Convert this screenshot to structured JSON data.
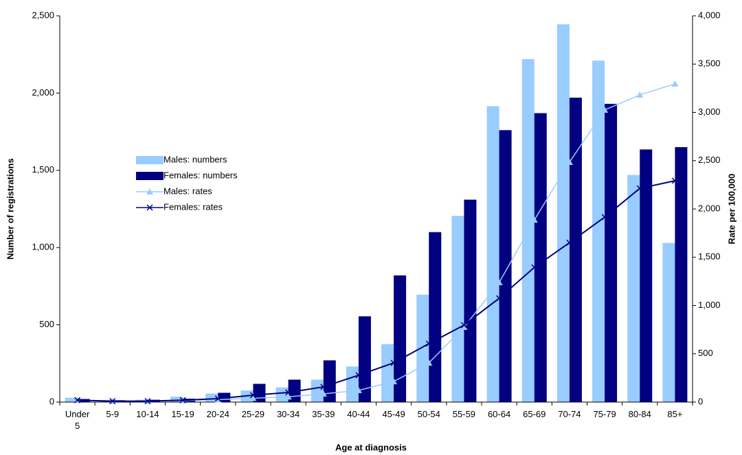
{
  "chart_data": {
    "type": "bar_line",
    "x_label": "Age at diagnosis",
    "y_label": "Number of registrations",
    "y2_label": "Rate per 100,000",
    "categories": [
      "Under 5",
      "5-9",
      "10-14",
      "15-19",
      "20-24",
      "25-29",
      "30-34",
      "35-39",
      "40-44",
      "45-49",
      "50-54",
      "55-59",
      "60-64",
      "65-69",
      "70-74",
      "75-79",
      "80-84",
      "85+"
    ],
    "ylim": [
      0,
      2500
    ],
    "yticks": [
      0,
      500,
      {
        "value": 1000,
        "label": "1,000"
      },
      {
        "value": 1500,
        "label": "1,500"
      },
      {
        "value": 2000,
        "label": "2,000"
      },
      {
        "value": 2500,
        "label": "2,500"
      }
    ],
    "y2lim": [
      0,
      4000
    ],
    "y2ticks": [
      0,
      500,
      {
        "value": 1000,
        "label": "1,000"
      },
      {
        "value": 1500,
        "label": "1,500"
      },
      {
        "value": 2000,
        "label": "2,000"
      },
      {
        "value": 2500,
        "label": "2,500"
      },
      {
        "value": 3000,
        "label": "3,000"
      },
      {
        "value": 3500,
        "label": "3,500"
      },
      {
        "value": 4000,
        "label": "4,000"
      }
    ],
    "grid": false,
    "series": [
      {
        "name": "Males: numbers",
        "type": "bar",
        "color": "#99ccff",
        "values": [
          28,
          12,
          15,
          35,
          55,
          75,
          95,
          145,
          230,
          375,
          695,
          1205,
          1915,
          2220,
          2445,
          2210,
          1470,
          1030
        ]
      },
      {
        "name": "Females: numbers",
        "type": "bar",
        "color": "#000080",
        "values": [
          20,
          12,
          15,
          22,
          60,
          118,
          145,
          270,
          555,
          820,
          1100,
          1310,
          1760,
          1870,
          1970,
          1930,
          1635,
          1650
        ]
      },
      {
        "name": "Males: rates",
        "type": "line",
        "marker": "triangle",
        "axis": "y2",
        "color": "#99ccff",
        "values": [
          20,
          10,
          10,
          15,
          25,
          40,
          55,
          85,
          121,
          213,
          406,
          776,
          1238,
          1886,
          2484,
          3025,
          3181,
          3295
        ]
      },
      {
        "name": "Females: rates",
        "type": "line",
        "marker": "x",
        "axis": "y2",
        "color": "#000080",
        "values": [
          20,
          10,
          10,
          20,
          36,
          71,
          100,
          157,
          278,
          406,
          605,
          797,
          1075,
          1395,
          1651,
          1915,
          2213,
          2292
        ]
      }
    ]
  }
}
